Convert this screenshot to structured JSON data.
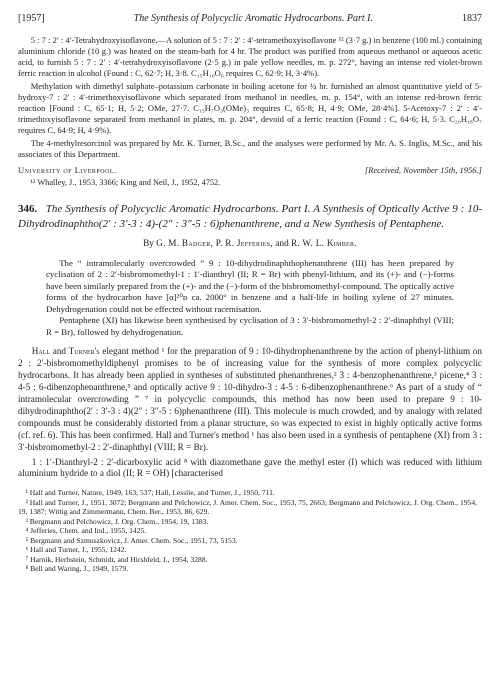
{
  "running_head": {
    "year": "[1957]",
    "title": "The Synthesis of Polycyclic Aromatic Hydrocarbons.  Part I.",
    "page": "1837"
  },
  "top_section": {
    "para1": "5 : 7 : 2′ : 4′-Tetrahydroxyisoflavone.—A solution of 5 : 7 : 2′ : 4′-tetramethoxyisoflavone ¹² (3·7 g.) in benzene (100 ml.) containing aluminium chloride (10 g.) was heated on the steam-bath for 4 hr. The product was purified from aqueous methanol or aqueous acetic acid, to furnish 5 : 7 : 2′ : 4′-tetrahydroxyisoflavone (2·5 g.) in pale yellow needles, m. p. 272°, having an intense red violet-brown ferric reaction in alcohol (Found : C, 62·7; H, 3·8. C₁₅H₁₀O₆ requires C, 62·9; H, 3·4%).",
    "para2": "Methylation with dimethyl sulphate–potassium carbonate in boiling acetone for ¼ hr. furnished an almost quantitative yield of 5-hydroxy-7 : 2′ : 4′-trimethoxyisoflavone which separated from methanol in needles, m. p. 154°, with an intense red-brown ferric reaction [Found : C, 65·1; H, 5·2; OMe, 27·7. C₁₅H₇O₃(OMe)₃ requires C, 65·8; H, 4·9; OMe, 28·4%]. 5-Acetoxy-7 : 2′ : 4′-trimethoxyisoflavone separated from methanol in plates, m. p. 204°, devoid of a ferric reaction (Found : C, 64·6; H, 5·3. C₂₀H₁₈O₇ requires C, 64·9; H, 4·9%).",
    "para3": "The 4-methylresorcinol was prepared by Mr. K. Turner, B.Sc., and the analyses were performed by Mr. A. S. Inglis, M.Sc., and his associates of this Department.",
    "affiliation": "University of Liverpool.",
    "received": "[Received, November 15th, 1956.]",
    "refs": "¹² Whalley, J., 1953, 3366; King and Neil, J., 1952, 4752."
  },
  "article": {
    "number": "346.",
    "title": "The Synthesis of Polycyclic Aromatic Hydrocarbons. Part I. A Synthesis of Optically Active 9 : 10-Dihydrodinaphtho(2′ : 3′-3 : 4)-(2″ : 3″-5 : 6)phenanthrene, and a New Synthesis of Pentaphene.",
    "authors_prefix": "By ",
    "authors": "G. M. Badger, P. R. Jefferies, ",
    "authors_and": "and ",
    "authors_last": "R. W. L. Kimber.",
    "abstract_p1": "The “ intramolecularly overcrowded ” 9 : 10-dihydrodinaphthophenanthrene (III) has been prepared by cyclisation of 2 : 2′-bisbromomethyl-1 : 1′-dianthryl (II; R = Br) with phenyl-lithium, and its (+)- and (−)-forms have been similarly prepared from the (+)- and the (−)-form of the bisbromomethyl-compound. The optically active forms of the hydrocarbon have [α]²⁰ᴅ ca. 2000° in benzene and a half-life in boiling xylene of 27 minutes. Dehydrogenation could not be effected without racemisation.",
    "abstract_p2": "Pentaphene (XI) has likewise been synthesised by cyclisation of 3 : 3′-bisbromomethyl-2 : 2′-dinaphthyl (VIII; R = Br), followed by dehydrogenation.",
    "body_p1_lead": "Hall ",
    "body_p1_and": "and ",
    "body_p1_turner": "Turner's",
    "body_p1_rest": " elegant method ¹ for the preparation of 9 : 10-dihydrophenanthrene by the action of phenyl-lithium on 2 : 2′-bisbromomethyldiphenyl promises to be of increasing value for the synthesis of more complex polycyclic hydrocarbons. It has already been applied in syntheses of substituted phenanthrenes,² 3 : 4-benzophenanthrene,³ picene,⁴ 3 : 4-5 : 6-dibenzophenanthrene,⁵ and optically active 9 : 10-dihydro-3 : 4-5 : 6-dibenzophenanthrene.⁶ As part of a study of “ intramolecular overcrowding ” ⁷ in polycyclic compounds, this method has now been used to prepare 9 : 10-dihydrodinaphtho(2′ : 3′-3 : 4)(2″ : 3″-5 : 6)phenanthrene (III). This molecule is much crowded, and by analogy with related compounds must be considerably distorted from a planar structure, so was expected to exist in highly optically active forms (cf. ref. 6). This has been confirmed. Hall and Turner's method ¹ has also been used in a synthesis of pentaphene (XI) from 3 : 3′-bisbromomethyl-2 : 2′-dinaphthyl (VIII; R = Br).",
    "body_p2": "1 : 1′-Dianthryl-2 : 2′-dicarboxylic acid ⁸ with diazomethane gave the methyl ester (I) which was reduced with lithium aluminium hydride to a diol (II; R = OH) [characterised"
  },
  "footnotes": {
    "f1": "¹ Hall and Turner, Nature, 1949, 163, 537; Hall, Lesslie, and Turner, J., 1950, 711.",
    "f2": "² Hall and Turner, J., 1951, 3072; Bergmann and Pelchowicz, J. Amer. Chem. Soc., 1953, 75, 2663; Bergmann and Pelchowicz, J. Org. Chem., 1954, 19, 1387; Wittig and Zimmermann, Chem. Ber., 1953, 86, 629.",
    "f3": "³ Bergmann and Pelchowicz, J. Org. Chem., 1954, 19, 1383.",
    "f4": "⁴ Jefferies, Chem. and Ind., 1955, 1425.",
    "f5": "⁵ Bergmann and Szmuszkovicz, J. Amer. Chem. Soc., 1951, 73, 5153.",
    "f6": "⁶ Hall and Turner, J., 1955, 1242.",
    "f7": "⁷ Harnik, Herbstein, Schmidt, and Hirshfeld, J., 1954, 3288.",
    "f8": "⁸ Bell and Waring, J., 1949, 1579."
  }
}
